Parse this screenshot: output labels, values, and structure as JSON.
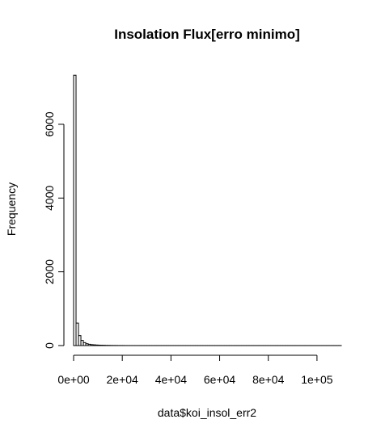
{
  "chart_data": {
    "type": "bar",
    "title": "Insolation Flux[erro minimo]",
    "xlabel": "data$koi_insol_err2",
    "ylabel": "Frequency",
    "xlim": [
      0,
      110000
    ],
    "ylim": [
      0,
      7400
    ],
    "x_ticks": [
      {
        "value": 0,
        "label": "0e+00"
      },
      {
        "value": 20000,
        "label": "2e+04"
      },
      {
        "value": 40000,
        "label": "4e+04"
      },
      {
        "value": 60000,
        "label": "6e+04"
      },
      {
        "value": 80000,
        "label": "8e+04"
      },
      {
        "value": 100000,
        "label": "1e+05"
      }
    ],
    "y_ticks": [
      {
        "value": 0,
        "label": "0"
      },
      {
        "value": 2000,
        "label": "2000"
      },
      {
        "value": 4000,
        "label": "4000"
      },
      {
        "value": 6000,
        "label": "6000"
      }
    ],
    "bin_width": 1000,
    "bin_start": 0,
    "values": [
      7330,
      610,
      270,
      140,
      80,
      50,
      35,
      25,
      20,
      15,
      12,
      10,
      8,
      6,
      5,
      4,
      3,
      3,
      2,
      2,
      2,
      1,
      1,
      1,
      1,
      1,
      1,
      1,
      1,
      1,
      1,
      1,
      1,
      1,
      1,
      1,
      1,
      1,
      1,
      1,
      1,
      1,
      1,
      1,
      1,
      1,
      1,
      1,
      1,
      1,
      1,
      1,
      1,
      1,
      1,
      1,
      1,
      1,
      1,
      1,
      1,
      1,
      1,
      1,
      1,
      1,
      1,
      1,
      1,
      1,
      1,
      1,
      1,
      1,
      1,
      1,
      1,
      1,
      1,
      1,
      1,
      1,
      1,
      1,
      1,
      1,
      1,
      1,
      1,
      1,
      1,
      1,
      1,
      1,
      1,
      1,
      1,
      1,
      1,
      1,
      1,
      1,
      1,
      1,
      1,
      1,
      1,
      1,
      1,
      1
    ],
    "grid": false,
    "legend": "none"
  }
}
